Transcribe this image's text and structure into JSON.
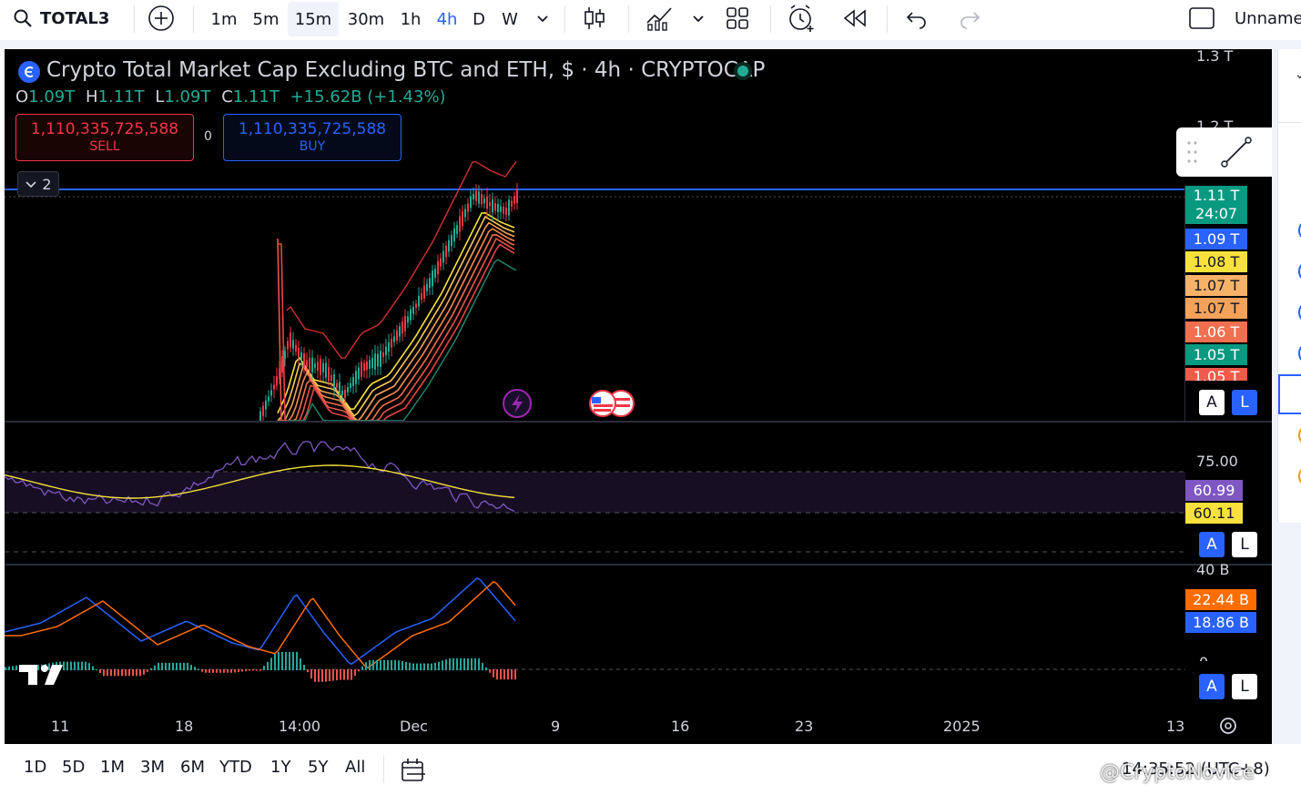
{
  "toolbar": {
    "symbol": "TOTAL3",
    "timeframes": [
      "1m",
      "5m",
      "15m",
      "30m",
      "1h",
      "4h",
      "D",
      "W"
    ],
    "active_timeframe": "4h",
    "layout_name": "Unname"
  },
  "legend": {
    "title": "Crypto Total Market Cap Excluding BTC and ETH, $ · 4h · CRYPTOCAP",
    "o_label": "O",
    "o_value": "1.09T",
    "h_label": "H",
    "h_value": "1.11T",
    "l_label": "L",
    "l_value": "1.09T",
    "c_label": "C",
    "c_value": "1.11T",
    "change": "+15.62B (+1.43%)",
    "indicator_count": "2"
  },
  "trade": {
    "sell_value": "1,110,335,725,588",
    "sell_label": "SELL",
    "spread": "0",
    "buy_value": "1,110,335,725,588",
    "buy_label": "BUY"
  },
  "price_axis": {
    "top1": "1.3 T",
    "top2": "1.2 T",
    "current_price": "1.11 T",
    "countdown": "24:07",
    "labels": [
      "1.09 T",
      "1.08 T",
      "1.07 T",
      "1.07 T",
      "1.06 T",
      "1.05 T",
      "1.05 T"
    ],
    "label_colors": [
      "#2962ff",
      "#f7e13c",
      "#f7b267",
      "#f4a259",
      "#f07050",
      "#089981",
      "#f05a4a"
    ]
  },
  "rsi_axis": {
    "level": "75.00",
    "rsi_value": "60.99",
    "ma_value": "60.11"
  },
  "macd_axis": {
    "top": "40 B",
    "signal_value": "22.44 B",
    "macd_value": "18.86 B",
    "zero": "0"
  },
  "scale_buttons": {
    "auto": "A",
    "log": "L"
  },
  "time_axis": [
    "11",
    "18",
    "14:00",
    "Dec",
    "9",
    "16",
    "23",
    "2025",
    "13"
  ],
  "ranges": [
    "1D",
    "5D",
    "1M",
    "3M",
    "6M",
    "YTD",
    "1Y",
    "5Y",
    "All"
  ],
  "status": {
    "clock": "14:35:52 (UTC+8)"
  },
  "watermark": "@CryptoNovice",
  "chart_data": {
    "type": "candlestick",
    "title": "Crypto Total Market Cap Excluding BTC and ETH, $ · 4h · CRYPTOCAP",
    "x_ticks": [
      "11",
      "18",
      "14:00",
      "Dec",
      "9",
      "16",
      "23",
      "2025",
      "13"
    ],
    "y_ticks": [
      "1.3 T",
      "1.2 T"
    ],
    "last_close": "1.11T",
    "panes": [
      "price",
      "RSI",
      "MACD"
    ]
  }
}
